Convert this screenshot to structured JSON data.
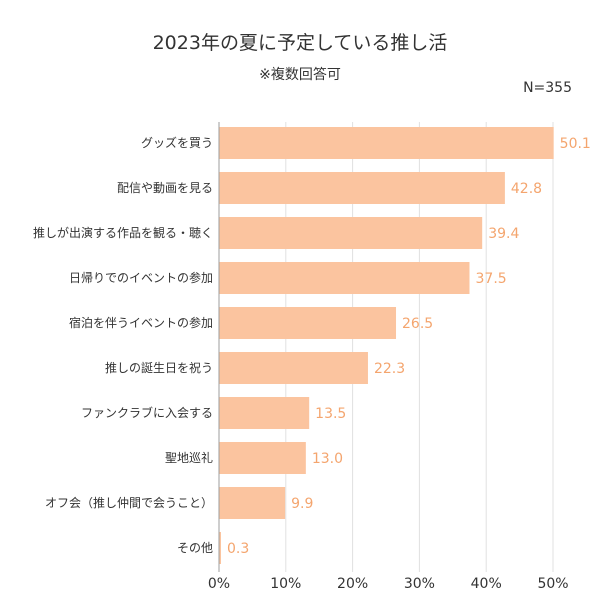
{
  "chart_data": {
    "type": "bar",
    "orientation": "horizontal",
    "title": "2023年の夏に予定している推し活",
    "subtitle": "※複数回答可",
    "note": "N=355",
    "categories": [
      "グッズを買う",
      "配信や動画を見る",
      "推しが出演する作品を観る・聴く",
      "日帰りでのイベントの参加",
      "宿泊を伴うイベントの参加",
      "推しの誕生日を祝う",
      "ファンクラブに入会する",
      "聖地巡礼",
      "オフ会（推し仲間で会うこと）",
      "その他"
    ],
    "values": [
      50.1,
      42.8,
      39.4,
      37.5,
      26.5,
      22.3,
      13.5,
      13.0,
      9.9,
      0.3
    ],
    "value_labels": [
      "50.1",
      "42.8",
      "39.4",
      "37.5",
      "26.5",
      "22.3",
      "13.5",
      "13.0",
      "9.9",
      "0.3"
    ],
    "xlim": [
      0,
      50
    ],
    "x_ticks": [
      0,
      10,
      20,
      30,
      40,
      50
    ],
    "x_tick_labels": [
      "0%",
      "10%",
      "20%",
      "30%",
      "40%",
      "50%"
    ],
    "grid": true,
    "colors": {
      "bar": "#fbc49f",
      "value_label": "#f4a56e",
      "grid": "#e0e0e0",
      "axis": "#9e9e9e"
    }
  }
}
